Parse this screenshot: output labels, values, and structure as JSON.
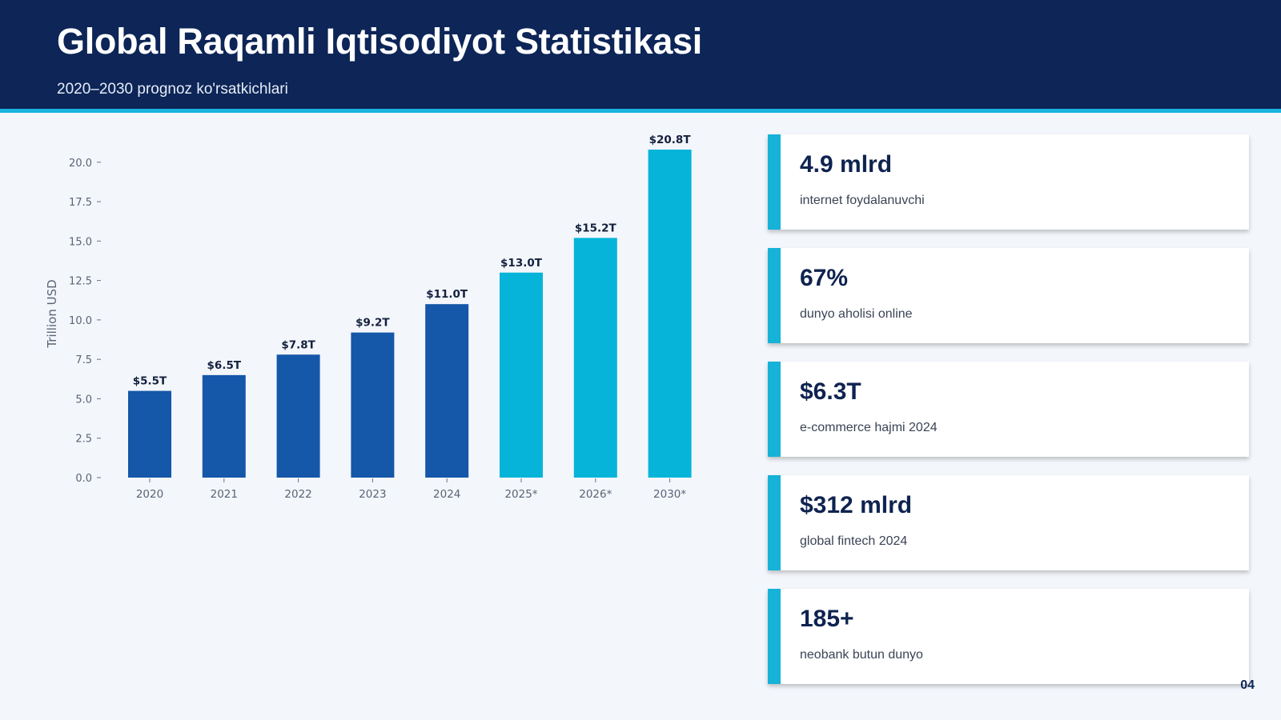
{
  "slide": {
    "title": "Global Raqamli Iqtisodiyot Statistikasi",
    "subtitle": "2020–2030 prognoz ko'rsatkichlari",
    "page_number": "04"
  },
  "colors": {
    "header": "#0d2557",
    "accent": "#1ab5de",
    "actual_bar": "#1557a8",
    "forecast_bar": "#06b4d9"
  },
  "chart_data": {
    "type": "bar",
    "categories": [
      "2020",
      "2021",
      "2022",
      "2023",
      "2024",
      "2025*",
      "2026*",
      "2030*"
    ],
    "values": [
      5.5,
      6.5,
      7.8,
      9.2,
      11.0,
      13.0,
      15.2,
      20.8
    ],
    "data_labels": [
      "$5.5T",
      "$6.5T",
      "$7.8T",
      "$9.2T",
      "$11.0T",
      "$13.0T",
      "$15.2T",
      "$20.8T"
    ],
    "forecast": [
      false,
      false,
      false,
      false,
      false,
      true,
      true,
      true
    ],
    "ylabel": "Trillion USD",
    "xlabel": "",
    "ylim": [
      0,
      20.8
    ],
    "yticks": [
      0.0,
      2.5,
      5.0,
      7.5,
      10.0,
      12.5,
      15.0,
      17.5,
      20.0
    ],
    "ytick_labels": [
      "0.0",
      "2.5",
      "5.0",
      "7.5",
      "10.0",
      "12.5",
      "15.0",
      "17.5",
      "20.0"
    ],
    "grid": false
  },
  "stats": [
    {
      "value": "4.9 mlrd",
      "label": "internet foydalanuvchi"
    },
    {
      "value": "67%",
      "label": "dunyo aholisi online"
    },
    {
      "value": "$6.3T",
      "label": "e-commerce hajmi 2024"
    },
    {
      "value": "$312 mlrd",
      "label": "global fintech 2024"
    },
    {
      "value": "185+",
      "label": "neobank butun dunyo"
    }
  ]
}
